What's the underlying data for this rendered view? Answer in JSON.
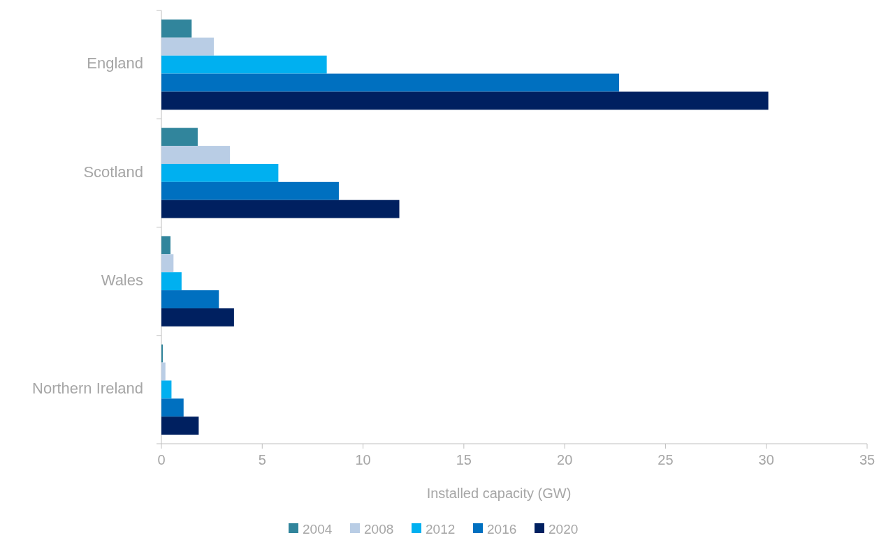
{
  "chart_data": {
    "type": "bar",
    "orientation": "horizontal",
    "xlabel": "Installed capacity (GW)",
    "categories": [
      "England",
      "Scotland",
      "Wales",
      "Northern Ireland"
    ],
    "series": [
      {
        "name": "2004",
        "color": "#31859c",
        "values": [
          1.5,
          1.8,
          0.45,
          0.07
        ]
      },
      {
        "name": "2008",
        "color": "#b9cde5",
        "values": [
          2.6,
          3.4,
          0.6,
          0.2
        ]
      },
      {
        "name": "2012",
        "color": "#00b0f0",
        "values": [
          8.2,
          5.8,
          1.0,
          0.5
        ]
      },
      {
        "name": "2016",
        "color": "#0070c0",
        "values": [
          22.7,
          8.8,
          2.85,
          1.1
        ]
      },
      {
        "name": "2020",
        "color": "#002060",
        "values": [
          30.1,
          11.8,
          3.6,
          1.85
        ]
      }
    ],
    "xlim": [
      0,
      35
    ],
    "xticks": [
      0,
      5,
      10,
      15,
      20,
      25,
      30,
      35
    ],
    "grid": false,
    "legend": "bottom"
  }
}
